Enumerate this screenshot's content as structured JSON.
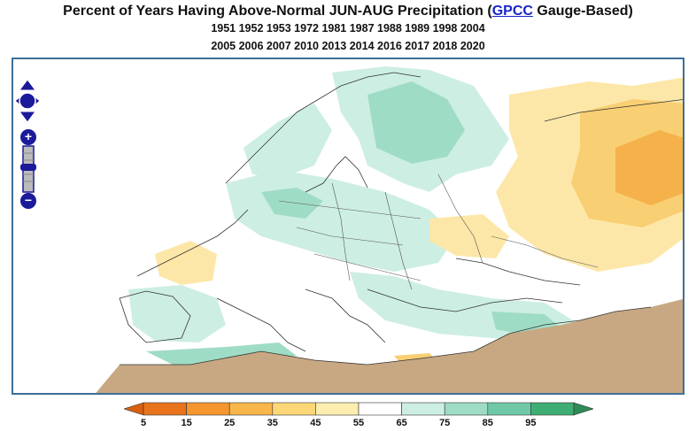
{
  "title": {
    "prefix": "Percent of Years Having Above-Normal JUN-AUG Precipitation (",
    "link": "GPCC",
    "suffix": " Gauge-Based)"
  },
  "years": {
    "line1": "1951 1952 1953 1972 1981 1987 1988 1989 1998 2004",
    "line2": "2005 2006 2007 2010 2013 2014 2016 2017 2018 2020"
  },
  "map": {
    "region": "Europe",
    "colors": {
      "outline": "#3d6f98",
      "coast": "#333333",
      "dry_masked": "#c8a882",
      "green_light": "#cdeee3",
      "green_mid": "#9fdcc6",
      "green_dark": "#6fc9a7",
      "orange_light": "#fde7a8",
      "orange_mid": "#f9cf73",
      "orange_dark": "#f5b14a"
    }
  },
  "controls": {
    "pan": "pan-arrows-icon",
    "zoom_in": "+",
    "zoom_out": "−"
  },
  "colorbar": {
    "ticks": [
      "5",
      "15",
      "25",
      "35",
      "45",
      "55",
      "65",
      "75",
      "85",
      "95"
    ],
    "colors": [
      "#e8731b",
      "#f6962f",
      "#f9b64a",
      "#fcd778",
      "#fdeeb0",
      "#ffffff",
      "#cdeee3",
      "#9fdcc6",
      "#6fc9a7",
      "#3fae74"
    ],
    "low_arrow": "#d95f0e",
    "high_arrow": "#2e8b57"
  }
}
